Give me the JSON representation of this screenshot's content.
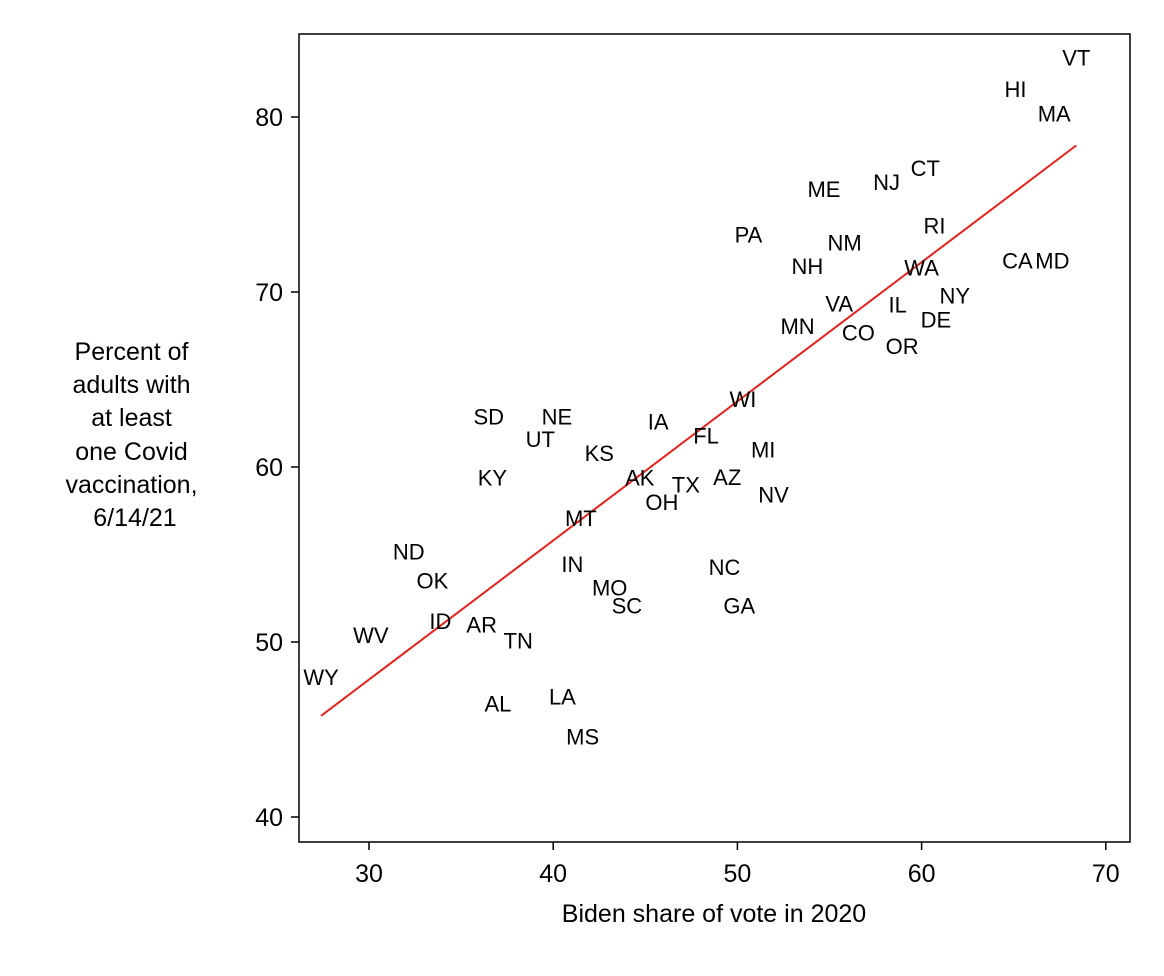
{
  "chart_data": {
    "type": "scatter",
    "title": "",
    "xlabel": "Biden share of vote in 2020",
    "ylabel_lines": [
      "Percent of",
      "adults with",
      "at least",
      "one Covid",
      "vaccination,",
      "6/14/21"
    ],
    "xlim": [
      26.5,
      71
    ],
    "ylim": [
      39,
      85
    ],
    "xticks": [
      30,
      40,
      50,
      60,
      70
    ],
    "yticks": [
      40,
      50,
      60,
      70,
      80
    ],
    "grid": false,
    "marker": "state-abbreviation-label",
    "points": [
      {
        "label": "VT",
        "x": 68.4,
        "y": 83.4
      },
      {
        "label": "HI",
        "x": 65.1,
        "y": 81.6
      },
      {
        "label": "MA",
        "x": 67.2,
        "y": 80.2
      },
      {
        "label": "CT",
        "x": 60.2,
        "y": 77.1
      },
      {
        "label": "NJ",
        "x": 58.1,
        "y": 76.3
      },
      {
        "label": "ME",
        "x": 54.7,
        "y": 75.9
      },
      {
        "label": "RI",
        "x": 60.7,
        "y": 73.8
      },
      {
        "label": "PA",
        "x": 50.6,
        "y": 73.3
      },
      {
        "label": "NM",
        "x": 55.6,
        "y": 72.5
      },
      {
        "label": "NH",
        "x": 53.8,
        "y": 71.5
      },
      {
        "label": "WA",
        "x": 60.0,
        "y": 71.4
      },
      {
        "label": "CA",
        "x": 65.2,
        "y": 71.8
      },
      {
        "label": "MD",
        "x": 67.1,
        "y": 71.8
      },
      {
        "label": "NY",
        "x": 61.8,
        "y": 69.8
      },
      {
        "label": "IL",
        "x": 58.7,
        "y": 69.3
      },
      {
        "label": "VA",
        "x": 55.2,
        "y": 69.0
      },
      {
        "label": "MN",
        "x": 53.7,
        "y": 68.4
      },
      {
        "label": "DE",
        "x": 59.8,
        "y": 68.1
      },
      {
        "label": "CO",
        "x": 57.0,
        "y": 67.7
      },
      {
        "label": "OR",
        "x": 58.4,
        "y": 67.5
      },
      {
        "label": "WI",
        "x": 50.3,
        "y": 63.9
      },
      {
        "label": "SD",
        "x": 36.5,
        "y": 62.9
      },
      {
        "label": "NE",
        "x": 40.2,
        "y": 62.9
      },
      {
        "label": "IA",
        "x": 45.7,
        "y": 62.6
      },
      {
        "label": "UT",
        "x": 39.3,
        "y": 61.6
      },
      {
        "label": "FL",
        "x": 48.3,
        "y": 61.8
      },
      {
        "label": "MI",
        "x": 51.4,
        "y": 61.0
      },
      {
        "label": "KS",
        "x": 42.5,
        "y": 60.8
      },
      {
        "label": "KY",
        "x": 36.7,
        "y": 59.4
      },
      {
        "label": "AK",
        "x": 44.7,
        "y": 59.4
      },
      {
        "label": "TX",
        "x": 47.2,
        "y": 59.0
      },
      {
        "label": "AZ",
        "x": 50.1,
        "y": 59.1
      },
      {
        "label": "NV",
        "x": 51.2,
        "y": 58.9
      },
      {
        "label": "OH",
        "x": 45.9,
        "y": 58.0
      },
      {
        "label": "MT",
        "x": 41.5,
        "y": 57.1
      },
      {
        "label": "NC",
        "x": 49.3,
        "y": 54.3
      },
      {
        "label": "ND",
        "x": 32.7,
        "y": 54.5
      },
      {
        "label": "OK",
        "x": 32.9,
        "y": 54.2
      },
      {
        "label": "IN",
        "x": 41.8,
        "y": 53.9
      },
      {
        "label": "MO",
        "x": 42.2,
        "y": 53.7
      },
      {
        "label": "SC",
        "x": 44.0,
        "y": 52.1
      },
      {
        "label": "GA",
        "x": 50.1,
        "y": 52.1
      },
      {
        "label": "ID",
        "x": 34.2,
        "y": 51.2
      },
      {
        "label": "AR",
        "x": 35.9,
        "y": 51.0
      },
      {
        "label": "WV",
        "x": 30.1,
        "y": 50.4
      },
      {
        "label": "TN",
        "x": 38.1,
        "y": 50.1
      },
      {
        "label": "WY",
        "x": 27.4,
        "y": 48.0
      },
      {
        "label": "LA",
        "x": 40.5,
        "y": 46.9
      },
      {
        "label": "AL",
        "x": 37.0,
        "y": 46.5
      },
      {
        "label": "MS",
        "x": 41.6,
        "y": 44.6
      }
    ],
    "fit_line": {
      "slope": 0.795,
      "intercept": 24.0,
      "x_range": [
        27.4,
        68.4
      ],
      "color": "#e8211b"
    }
  }
}
